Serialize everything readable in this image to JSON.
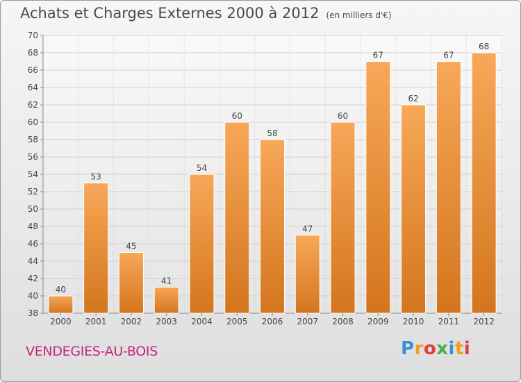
{
  "chart_data": {
    "type": "bar",
    "title": "Achats et Charges Externes 2000 à 2012",
    "subtitle": "(en milliers d'€)",
    "categories": [
      "2000",
      "2001",
      "2002",
      "2003",
      "2004",
      "2005",
      "2006",
      "2007",
      "2008",
      "2009",
      "2010",
      "2011",
      "2012"
    ],
    "values": [
      40,
      53,
      45,
      41,
      54,
      60,
      58,
      47,
      60,
      67,
      62,
      67,
      68
    ],
    "ylim": [
      38,
      70
    ],
    "yticks": [
      38,
      40,
      42,
      44,
      46,
      48,
      50,
      52,
      54,
      56,
      58,
      60,
      62,
      64,
      66,
      68,
      70
    ],
    "grid": true,
    "bar_color": "#f0a050",
    "xlabel": "",
    "ylabel": ""
  },
  "location": "VENDEGIES-AU-BOIS",
  "logo": {
    "letters": [
      "P",
      "r",
      "o",
      "x",
      "i",
      "t",
      "i"
    ],
    "colors": [
      "#3a8fd8",
      "#f0a020",
      "#e04040",
      "#48b048",
      "#3a8fd8",
      "#f0a020",
      "#e04040"
    ]
  }
}
